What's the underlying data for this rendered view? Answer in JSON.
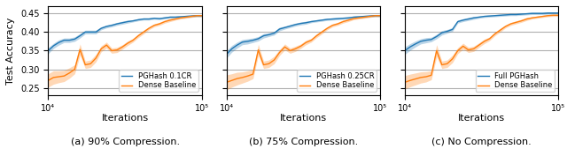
{
  "chart_data": [
    {
      "type": "line",
      "title": "(a) 90% Compression.",
      "xlabel": "Iterations",
      "ylabel": "Test Accuracy",
      "log": "x",
      "grid": true,
      "legend": "lower right",
      "x": [
        10000,
        10826,
        11721,
        12690,
        13738,
        14874,
        16103,
        17433,
        18874,
        20434,
        22122,
        23950,
        25930,
        28072,
        30392,
        32903,
        35622,
        38566,
        41753,
        45203,
        48939,
        52983,
        57362,
        62102,
        67234,
        72790,
        78805,
        85317,
        92367,
        100000
      ],
      "xlim": [
        10000,
        100000
      ],
      "xticks": [
        {
          "value": 10000,
          "label": "10⁴"
        },
        {
          "value": 100000,
          "label": "10⁵"
        }
      ],
      "ylim": [
        0.23,
        0.47
      ],
      "yticks": [
        0.25,
        {
          "value": 0.3,
          "label": "0.30"
        },
        0.35,
        {
          "value": 0.4,
          "label": "0.40"
        },
        0.45
      ],
      "series": [
        {
          "name": "PGHash 0.1CR",
          "values": [
            0.35,
            0.363,
            0.372,
            0.378,
            0.378,
            0.381,
            0.39,
            0.4,
            0.4,
            0.4,
            0.41,
            0.415,
            0.418,
            0.422,
            0.425,
            0.428,
            0.43,
            0.433,
            0.435,
            0.435,
            0.437,
            0.436,
            0.438,
            0.44,
            0.44,
            0.441,
            0.442,
            0.443,
            0.444,
            0.444
          ],
          "std": [
            0.008,
            0.007,
            0.007,
            0.006,
            0.006,
            0.006,
            0.006,
            0.005,
            0.005,
            0.005,
            0.004,
            0.004,
            0.004,
            0.004,
            0.004,
            0.004,
            0.003,
            0.003,
            0.003,
            0.003,
            0.003,
            0.003,
            0.003,
            0.003,
            0.003,
            0.003,
            0.003,
            0.003,
            0.003,
            0.003
          ]
        },
        {
          "name": "Dense Baseline",
          "values": [
            0.27,
            0.278,
            0.28,
            0.282,
            0.29,
            0.3,
            0.353,
            0.312,
            0.315,
            0.33,
            0.355,
            0.365,
            0.35,
            0.352,
            0.36,
            0.37,
            0.378,
            0.39,
            0.4,
            0.41,
            0.418,
            0.422,
            0.428,
            0.432,
            0.435,
            0.438,
            0.44,
            0.442,
            0.444,
            0.444
          ],
          "std": [
            0.018,
            0.018,
            0.016,
            0.015,
            0.014,
            0.012,
            0.015,
            0.01,
            0.01,
            0.01,
            0.008,
            0.008,
            0.007,
            0.007,
            0.006,
            0.006,
            0.005,
            0.005,
            0.005,
            0.004,
            0.004,
            0.004,
            0.004,
            0.004,
            0.003,
            0.003,
            0.003,
            0.003,
            0.003,
            0.003
          ]
        }
      ]
    },
    {
      "type": "line",
      "title": "(b) 75% Compression.",
      "xlabel": "Iterations",
      "log": "x",
      "grid": true,
      "legend": "lower right",
      "tick_labels": "x",
      "x": [
        10000,
        10826,
        11721,
        12690,
        13738,
        14874,
        16103,
        17433,
        18874,
        20434,
        22122,
        23950,
        25930,
        28072,
        30392,
        32903,
        35622,
        38566,
        41753,
        45203,
        48939,
        52983,
        57362,
        62102,
        67234,
        72790,
        78805,
        85317,
        92367,
        100000
      ],
      "xlim": [
        10000,
        100000
      ],
      "xticks": [
        {
          "value": 10000,
          "label": "10⁴"
        },
        {
          "value": 100000,
          "label": "10⁵"
        }
      ],
      "ylim": [
        0.23,
        0.47
      ],
      "yticks": [
        0.25,
        0.3,
        0.35,
        0.4,
        0.45
      ],
      "series": [
        {
          "name": "PGHash 0.25CR",
          "values": [
            0.34,
            0.355,
            0.365,
            0.373,
            0.375,
            0.378,
            0.382,
            0.39,
            0.393,
            0.397,
            0.408,
            0.412,
            0.416,
            0.42,
            0.423,
            0.425,
            0.428,
            0.43,
            0.432,
            0.434,
            0.435,
            0.436,
            0.437,
            0.438,
            0.44,
            0.441,
            0.442,
            0.443,
            0.444,
            0.444
          ],
          "std": [
            0.01,
            0.009,
            0.008,
            0.007,
            0.007,
            0.006,
            0.006,
            0.006,
            0.005,
            0.005,
            0.005,
            0.004,
            0.004,
            0.004,
            0.004,
            0.004,
            0.003,
            0.003,
            0.003,
            0.003,
            0.003,
            0.003,
            0.003,
            0.003,
            0.003,
            0.003,
            0.003,
            0.003,
            0.003,
            0.003
          ]
        },
        {
          "name": "Dense Baseline",
          "values": [
            0.265,
            0.27,
            0.275,
            0.278,
            0.282,
            0.287,
            0.352,
            0.312,
            0.315,
            0.325,
            0.345,
            0.36,
            0.35,
            0.355,
            0.362,
            0.372,
            0.378,
            0.39,
            0.4,
            0.41,
            0.418,
            0.422,
            0.428,
            0.432,
            0.436,
            0.438,
            0.44,
            0.442,
            0.444,
            0.444
          ],
          "std": [
            0.02,
            0.018,
            0.017,
            0.015,
            0.014,
            0.012,
            0.015,
            0.01,
            0.01,
            0.01,
            0.008,
            0.008,
            0.007,
            0.007,
            0.006,
            0.006,
            0.005,
            0.005,
            0.005,
            0.004,
            0.004,
            0.004,
            0.004,
            0.004,
            0.003,
            0.003,
            0.003,
            0.003,
            0.003,
            0.003
          ]
        }
      ]
    },
    {
      "type": "line",
      "title": "(c) No Compression.",
      "xlabel": "Iterations",
      "log": "x",
      "grid": true,
      "legend": "lower right",
      "tick_labels": "x",
      "x": [
        10000,
        10826,
        11721,
        12690,
        13738,
        14874,
        16103,
        17433,
        18874,
        20434,
        22122,
        23950,
        25930,
        28072,
        30392,
        32903,
        35622,
        38566,
        41753,
        45203,
        48939,
        52983,
        57362,
        62102,
        67234,
        72790,
        78805,
        85317,
        92367,
        100000
      ],
      "xlim": [
        10000,
        100000
      ],
      "xticks": [
        {
          "value": 10000,
          "label": "10⁴"
        },
        {
          "value": 100000,
          "label": "10⁵"
        }
      ],
      "ylim": [
        0.23,
        0.47
      ],
      "yticks": [
        0.25,
        0.3,
        0.35,
        0.4,
        0.45
      ],
      "series": [
        {
          "name": "Full PGHash",
          "values": [
            0.35,
            0.36,
            0.368,
            0.375,
            0.378,
            0.38,
            0.388,
            0.398,
            0.402,
            0.407,
            0.428,
            0.432,
            0.435,
            0.438,
            0.44,
            0.442,
            0.443,
            0.444,
            0.445,
            0.446,
            0.447,
            0.447,
            0.448,
            0.449,
            0.45,
            0.45,
            0.45,
            0.451,
            0.451,
            0.451
          ],
          "std": [
            0.01,
            0.009,
            0.008,
            0.007,
            0.007,
            0.006,
            0.006,
            0.006,
            0.005,
            0.005,
            0.004,
            0.004,
            0.004,
            0.004,
            0.003,
            0.003,
            0.003,
            0.003,
            0.003,
            0.003,
            0.003,
            0.003,
            0.003,
            0.003,
            0.003,
            0.003,
            0.003,
            0.003,
            0.003,
            0.003
          ]
        },
        {
          "name": "Dense Baseline",
          "values": [
            0.265,
            0.27,
            0.274,
            0.278,
            0.28,
            0.284,
            0.35,
            0.312,
            0.315,
            0.328,
            0.35,
            0.362,
            0.352,
            0.355,
            0.365,
            0.375,
            0.382,
            0.395,
            0.405,
            0.415,
            0.422,
            0.426,
            0.43,
            0.435,
            0.438,
            0.44,
            0.442,
            0.444,
            0.445,
            0.445
          ],
          "std": [
            0.018,
            0.017,
            0.016,
            0.015,
            0.014,
            0.012,
            0.016,
            0.01,
            0.01,
            0.01,
            0.008,
            0.008,
            0.007,
            0.007,
            0.006,
            0.006,
            0.005,
            0.005,
            0.005,
            0.004,
            0.004,
            0.004,
            0.004,
            0.004,
            0.003,
            0.003,
            0.003,
            0.003,
            0.003,
            0.003
          ]
        }
      ]
    }
  ]
}
